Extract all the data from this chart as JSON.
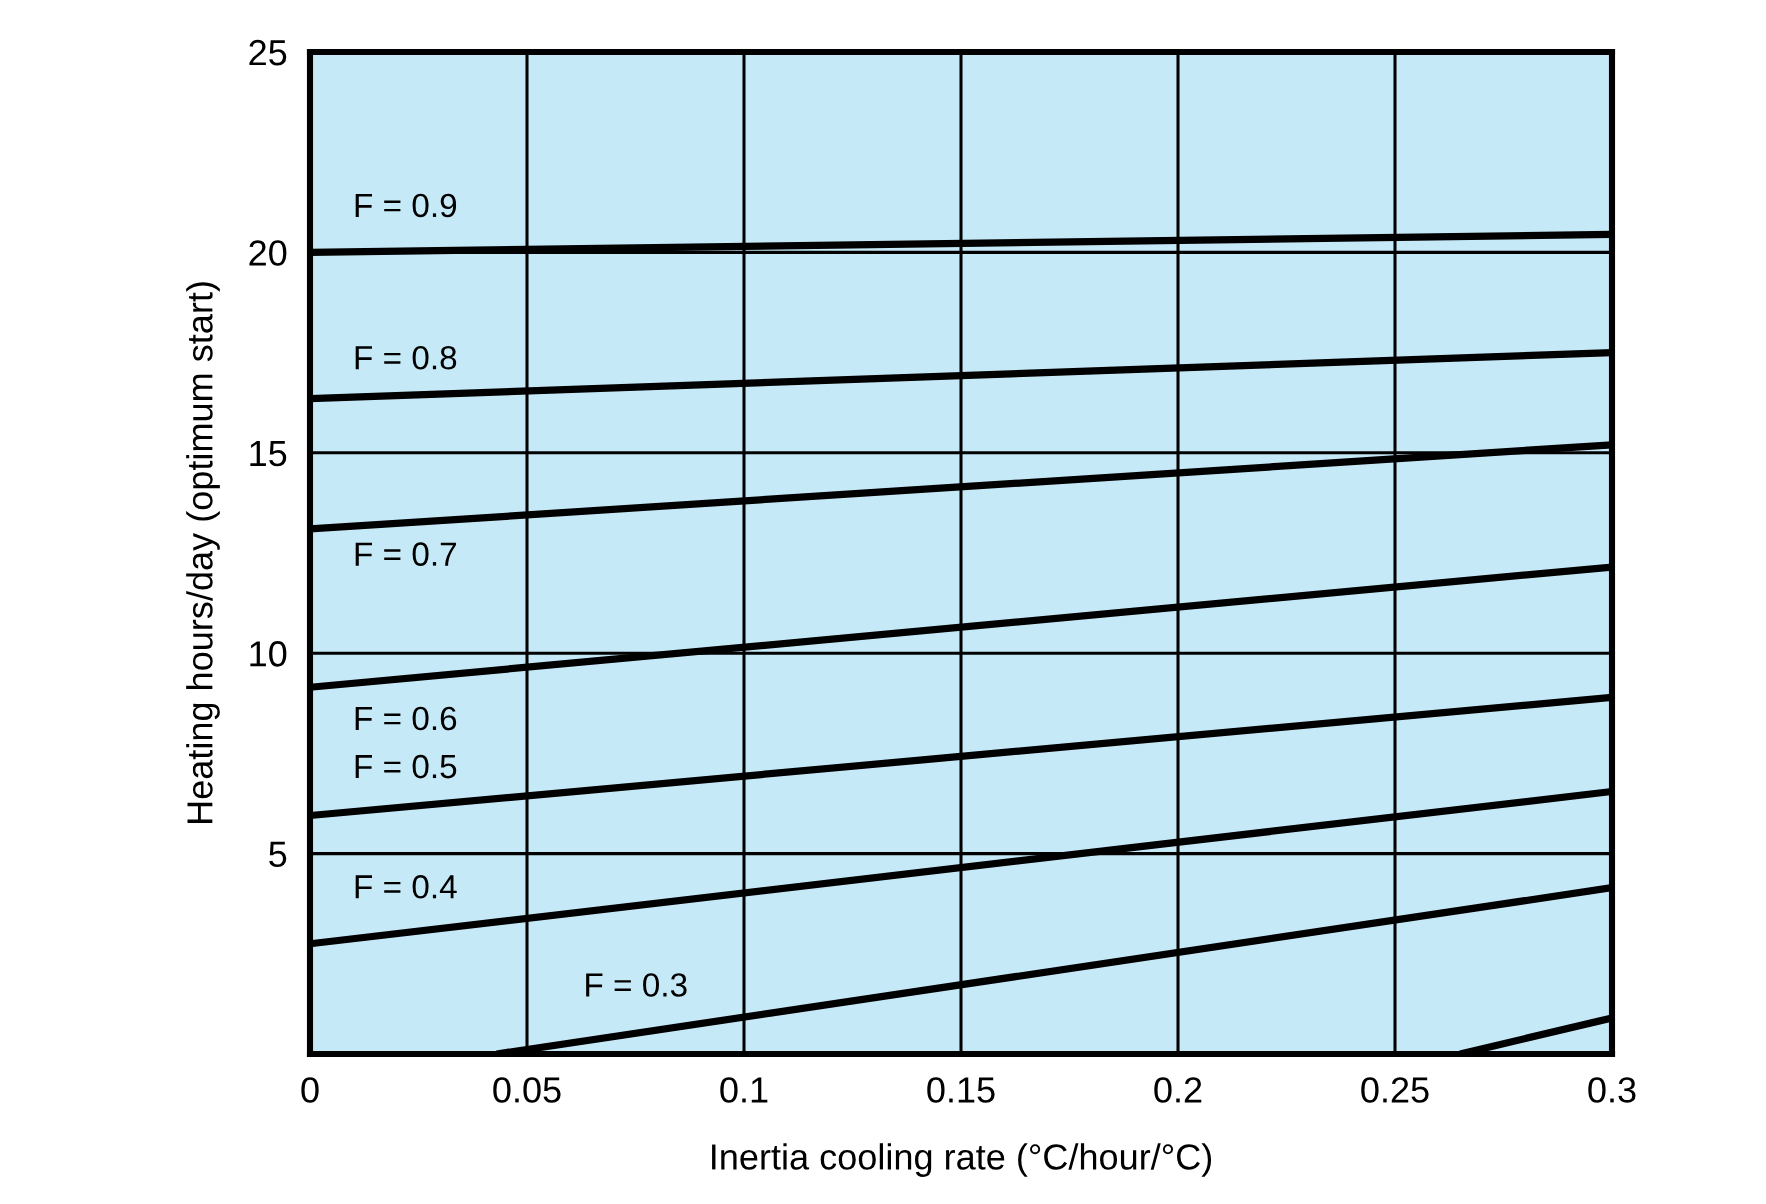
{
  "chart_data": {
    "type": "line",
    "xlabel": "Inertia cooling rate (°C/hour/°C)",
    "ylabel": "Heating hours/day (optimum start)",
    "series": [
      {
        "color": "#000000",
        "x": [
          0,
          0.3
        ],
        "values": [
          20.0,
          20.45
        ]
      },
      {
        "color": "#000000",
        "x": [
          0,
          0.3
        ],
        "values": [
          16.35,
          17.5
        ]
      },
      {
        "color": "#000000",
        "x": [
          0,
          0.3
        ],
        "values": [
          13.1,
          15.2
        ]
      },
      {
        "color": "#000000",
        "x": [
          0,
          0.3
        ],
        "values": [
          9.15,
          12.15
        ]
      },
      {
        "color": "#000000",
        "x": [
          0,
          0.3
        ],
        "values": [
          5.95,
          8.9
        ]
      },
      {
        "color": "#000000",
        "x": [
          0,
          0.3
        ],
        "values": [
          2.75,
          6.55
        ]
      },
      {
        "color": "#000000",
        "x": [
          0.043,
          0.3
        ],
        "values": [
          0,
          4.15
        ]
      },
      {
        "color": "#000000",
        "x": [
          0.265,
          0.3
        ],
        "values": [
          0,
          0.9
        ]
      }
    ],
    "annotations": [
      "F = 0.9",
      "F = 0.8",
      "F = 0.7",
      "F = 0.6",
      "F = 0.5",
      "F = 0.4",
      "F = 0.3"
    ],
    "xlim": [
      0,
      0.3
    ],
    "xticks": [
      0,
      0.05,
      0.1,
      0.15,
      0.2,
      0.25,
      0.3
    ],
    "ylim": [
      0,
      25
    ],
    "yticks": [
      5,
      10,
      15,
      20,
      25
    ],
    "grid": true,
    "marker": "none",
    "line_style": "solid",
    "legend": false
  }
}
